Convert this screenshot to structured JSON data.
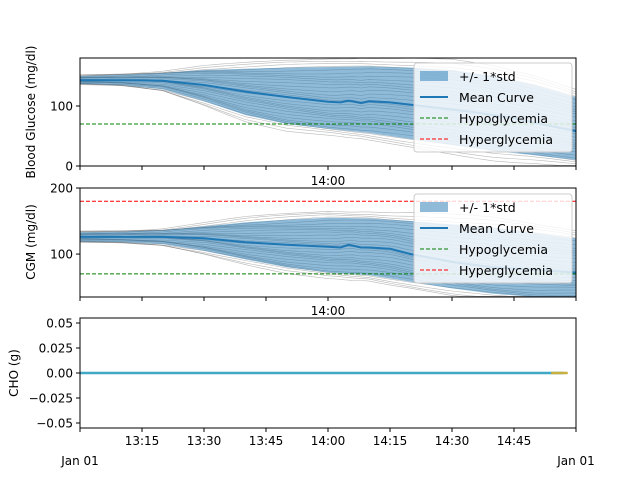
{
  "figure": {
    "xaxis": {
      "ticks": [
        {
          "t": 0,
          "label": ""
        },
        {
          "t": 15,
          "label": "13:15"
        },
        {
          "t": 30,
          "label": "13:30"
        },
        {
          "t": 45,
          "label": "13:45"
        },
        {
          "t": 60,
          "label": "14:00"
        },
        {
          "t": 75,
          "label": "14:15"
        },
        {
          "t": 90,
          "label": "14:30"
        },
        {
          "t": 105,
          "label": "14:45"
        },
        {
          "t": 120,
          "label": ""
        }
      ],
      "start_label": "Jan 01",
      "end_label": "Jan 01",
      "shared_label": "14:00"
    },
    "legend": {
      "std": "+/- 1*std",
      "mean": "Mean Curve",
      "hypo": "Hypoglycemia",
      "hyper": "Hyperglycemia"
    },
    "colors": {
      "mean": "#1f77b4",
      "band": "#1f77b4",
      "traces": "#808080",
      "hypo": "#008000",
      "hyper": "#ff0000",
      "cho": "#40a8c4",
      "cho_end": "#c8b040"
    }
  },
  "chart_data": [
    {
      "type": "line",
      "ylabel": "Blood Glucose (mg/dl)",
      "ylim": [
        0,
        180
      ],
      "yticks": [
        0,
        100
      ],
      "legend_position": "top-right",
      "xlim_minutes": [
        0,
        120
      ],
      "x_start": "13:00",
      "hypoglycemia_threshold": 70,
      "hyperglycemia_threshold": 180,
      "mean_curve": {
        "x": [
          0,
          10,
          20,
          30,
          40,
          50,
          60,
          63,
          65,
          68,
          70,
          75,
          80,
          85,
          90,
          95,
          100,
          105,
          110,
          115,
          120
        ],
        "y": [
          143,
          143,
          142,
          135,
          124,
          115,
          107,
          106,
          109,
          105,
          108,
          106,
          102,
          98,
          94,
          90,
          85,
          80,
          72,
          65,
          58
        ]
      },
      "std_band": {
        "x": [
          0,
          10,
          20,
          30,
          40,
          50,
          60,
          70,
          80,
          90,
          100,
          110,
          120
        ],
        "upper": [
          150,
          152,
          155,
          160,
          162,
          164,
          165,
          166,
          164,
          160,
          150,
          135,
          115
        ],
        "lower": [
          137,
          135,
          128,
          108,
          85,
          70,
          62,
          55,
          45,
          35,
          25,
          18,
          10
        ]
      }
    },
    {
      "type": "line",
      "ylabel": "CGM (mg/dl)",
      "ylim": [
        35,
        200
      ],
      "yticks": [
        100,
        200
      ],
      "legend_position": "top-right",
      "xlim_minutes": [
        0,
        120
      ],
      "hypoglycemia_threshold": 70,
      "hyperglycemia_threshold": 180,
      "mean_curve": {
        "x": [
          0,
          10,
          20,
          30,
          40,
          50,
          60,
          63,
          65,
          68,
          70,
          75,
          80,
          85,
          90,
          95,
          100,
          105,
          110,
          115,
          120
        ],
        "y": [
          126,
          126,
          126,
          124,
          118,
          114,
          111,
          110,
          114,
          110,
          110,
          108,
          100,
          94,
          88,
          84,
          80,
          78,
          76,
          74,
          72
        ]
      },
      "std_band": {
        "x": [
          0,
          10,
          20,
          30,
          40,
          50,
          60,
          70,
          80,
          90,
          100,
          110,
          120
        ],
        "upper": [
          133,
          134,
          136,
          142,
          148,
          152,
          155,
          154,
          150,
          145,
          140,
          132,
          124
        ],
        "lower": [
          119,
          118,
          115,
          105,
          92,
          80,
          72,
          68,
          58,
          48,
          40,
          35,
          35
        ]
      }
    },
    {
      "type": "line",
      "ylabel": "CHO (g)",
      "ylim": [
        -0.055,
        0.055
      ],
      "yticks": [
        -0.05,
        -0.025,
        0.0,
        0.025,
        0.05
      ],
      "ytick_labels": [
        "−0.05",
        "−0.025",
        "0.00",
        "0.025",
        "0.05"
      ],
      "xlim_minutes": [
        0,
        120
      ],
      "series": [
        {
          "x": [
            0,
            117
          ],
          "y": [
            0,
            0
          ]
        },
        {
          "x": [
            114,
            118
          ],
          "y": [
            0,
            0
          ]
        }
      ]
    }
  ]
}
